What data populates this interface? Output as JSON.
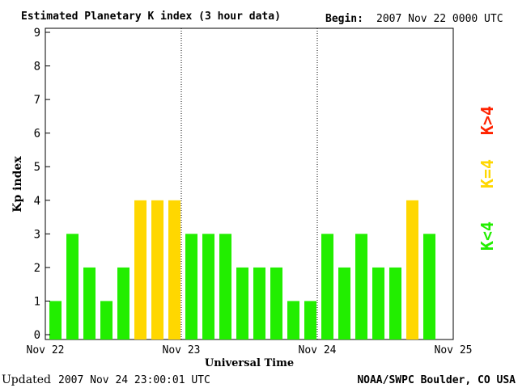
{
  "header": {
    "title": "Estimated Planetary K index (3 hour data)",
    "begin_label": "Begin:",
    "begin_value": "2007 Nov 22 0000 UTC"
  },
  "footer": {
    "updated_label": "Updated",
    "updated_value": "2007 Nov 24 23:00:01 UTC",
    "source": "NOAA/SWPC Boulder, CO USA"
  },
  "legend": {
    "items": [
      {
        "label": "K<4",
        "color": "#22ee00"
      },
      {
        "label": "K=4",
        "color": "#ffd700"
      },
      {
        "label": "K>4",
        "color": "#ff2200"
      }
    ]
  },
  "chart_data": {
    "type": "bar",
    "ylabel": "Kp index",
    "xlabel": "Universal Time",
    "ylim": [
      0,
      9
    ],
    "yticks": [
      "0",
      "1",
      "2",
      "3",
      "4",
      "5",
      "6",
      "7",
      "8",
      "9"
    ],
    "xtick_labels": [
      "Nov 22",
      "Nov 23",
      "Nov 24",
      "Nov 25"
    ],
    "values": [
      1,
      3,
      2,
      1,
      2,
      4,
      4,
      4,
      3,
      3,
      3,
      2,
      2,
      2,
      1,
      1,
      3,
      2,
      3,
      2,
      2,
      4,
      3
    ],
    "colors": {
      "below": "#22ee00",
      "equal": "#ffd700",
      "above": "#ff2200"
    }
  }
}
